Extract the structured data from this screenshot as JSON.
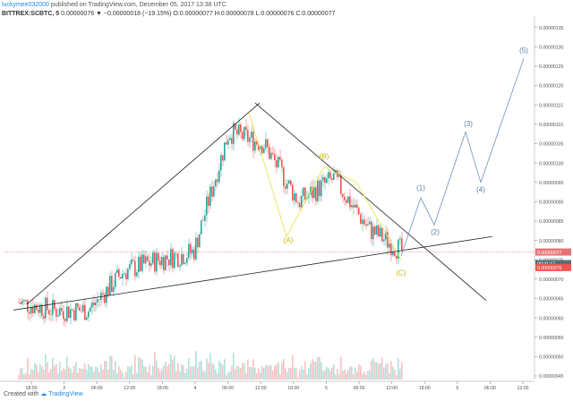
{
  "header": {
    "user": "luckymee032000",
    "published": "published on TradingView.com, December 05, 2017 13:38 UTC",
    "symbol": "BITTREX:SCBTC, 5",
    "ohlc": "0.00000076 ▼ −0.00000018 (−19.15%) O:0.00000077 H:0.00000078 L:0.00000076 C:0.00000077"
  },
  "footer": {
    "created_with": "Created with",
    "brand": "TradingView"
  },
  "chart_data": {
    "type": "line",
    "title": "BITTREX:SCBTC, 5",
    "x_tick_labels": [
      "18:00",
      "3",
      "06:00",
      "12:00",
      "18:00",
      "4",
      "06:00",
      "12:00",
      "18:00",
      "5",
      "06:00",
      "12:00",
      "18:00",
      "6",
      "06:00",
      "12:00"
    ],
    "y_tick_labels": [
      "0.00000135",
      "0.00000130",
      "0.00000125",
      "0.00000120",
      "0.00000115",
      "0.00000110",
      "0.00000105",
      "0.00000100",
      "0.00000095",
      "0.00000090",
      "0.00000085",
      "0.00000080",
      "0.00000075",
      "0.00000070",
      "0.00000065",
      "0.00000060",
      "0.00000055",
      "0.00000050",
      "0.00000045"
    ],
    "ylim": [
      4.5e-07,
      1.37e-06
    ],
    "price_markers": [
      {
        "label": "0.00000077",
        "value": 7.7e-07,
        "color": "#e57373"
      },
      {
        "label": "00:31:17",
        "value": 7.4e-07,
        "color": "#546e7a"
      },
      {
        "label": "0.00000076",
        "value": 7.3e-07,
        "color": "#ef5350"
      }
    ],
    "price_series": [
      {
        "x": "18:00",
        "close": 6.4e-07
      },
      {
        "x": "3",
        "close": 6.2e-07
      },
      {
        "x": "06:00",
        "close": 6.2e-07
      },
      {
        "x": "12:00",
        "close": 7.2e-07
      },
      {
        "x": "18:00",
        "close": 7.5e-07
      },
      {
        "x": "4",
        "close": 7.7e-07
      },
      {
        "x": "06:00",
        "close": 1.08e-06
      },
      {
        "x": "12:00",
        "close": 1.05e-06
      },
      {
        "x": "18:00",
        "close": 9e-07
      },
      {
        "x": "5",
        "close": 9.6e-07
      },
      {
        "x": "06:00",
        "close": 8.3e-07
      },
      {
        "x": "12:00",
        "close": 7.7e-07
      }
    ],
    "wave_labels": [
      {
        "label": "(A)",
        "color": "#c8b900"
      },
      {
        "label": "(B)",
        "color": "#c8b900"
      },
      {
        "label": "(C)",
        "color": "#c8b900"
      },
      {
        "label": "(1)",
        "color": "#5a7fa8"
      },
      {
        "label": "(2)",
        "color": "#5a7fa8"
      },
      {
        "label": "(3)",
        "color": "#5a7fa8"
      },
      {
        "label": "(4)",
        "color": "#5a7fa8"
      },
      {
        "label": "(5)",
        "color": "#5a7fa8"
      }
    ],
    "colors": {
      "up": "#26a69a",
      "down": "#ef5350",
      "abc_wave": "#e6e650",
      "impulse_wave": "#7b9cc8",
      "trendline": "#222222"
    }
  }
}
